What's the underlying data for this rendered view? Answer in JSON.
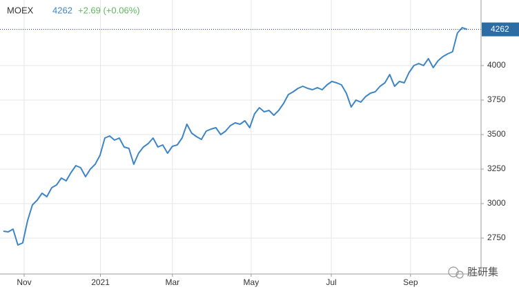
{
  "chart_data": {
    "type": "line",
    "symbol": "MOEX",
    "last": 4262,
    "change": "+2.69 (+0.06%)",
    "watermark": "胜研集",
    "color": "#3d85c6",
    "grid": true,
    "values": [
      2800,
      2795,
      2815,
      2700,
      2715,
      2875,
      2990,
      3025,
      3075,
      3050,
      3115,
      3135,
      3185,
      3165,
      3225,
      3275,
      3260,
      3195,
      3250,
      3285,
      3350,
      3475,
      3490,
      3460,
      3475,
      3410,
      3400,
      3285,
      3365,
      3410,
      3435,
      3475,
      3410,
      3425,
      3365,
      3415,
      3425,
      3475,
      3575,
      3510,
      3485,
      3465,
      3525,
      3540,
      3550,
      3500,
      3525,
      3565,
      3585,
      3575,
      3600,
      3550,
      3650,
      3695,
      3665,
      3675,
      3640,
      3675,
      3725,
      3790,
      3810,
      3835,
      3850,
      3835,
      3825,
      3840,
      3825,
      3860,
      3885,
      3875,
      3860,
      3800,
      3700,
      3750,
      3735,
      3775,
      3800,
      3810,
      3850,
      3875,
      3935,
      3850,
      3885,
      3875,
      3950,
      4000,
      4015,
      4000,
      4050,
      3985,
      4035,
      4065,
      4085,
      4100,
      4235,
      4275,
      4262
    ],
    "xlim": [
      -0.7,
      98.9
    ],
    "xticks": [
      {
        "value": 4.3,
        "label": "Nov"
      },
      {
        "value": 20.1,
        "label": "2021"
      },
      {
        "value": 35,
        "label": "Mar"
      },
      {
        "value": 51.3,
        "label": "May"
      },
      {
        "value": 67.9,
        "label": "Jul"
      },
      {
        "value": 84.3,
        "label": "Sep"
      }
    ],
    "ylim": [
      2490,
      4475
    ],
    "yticks": [
      2750,
      3000,
      3250,
      3500,
      3750,
      4000
    ]
  }
}
